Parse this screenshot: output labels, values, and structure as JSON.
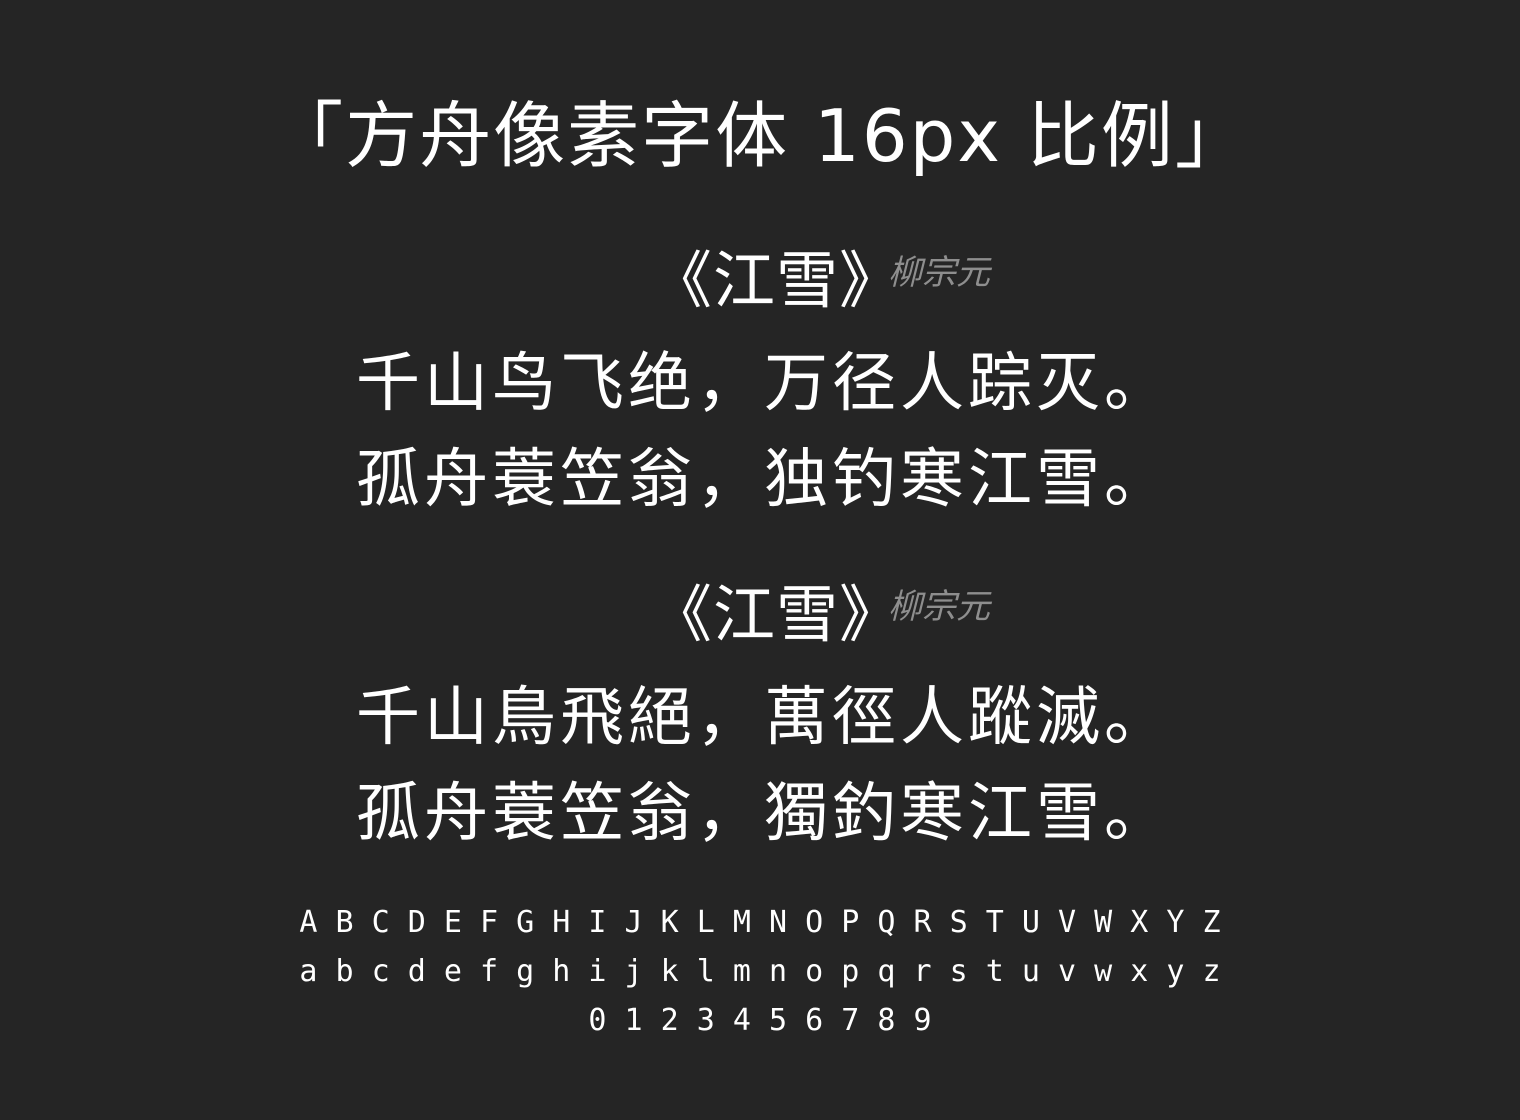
{
  "heading": "「方舟像素字体 16px 比例」",
  "poems": [
    {
      "title": "《江雪》",
      "author": "柳宗元",
      "lines": [
        "千山鸟飞绝，万径人踪灭。",
        "孤舟蓑笠翁，独钓寒江雪。"
      ]
    },
    {
      "title": "《江雪》",
      "author": "柳宗元",
      "lines": [
        "千山鳥飛絕，萬徑人蹤滅。",
        "孤舟蓑笠翁，獨釣寒江雪。"
      ]
    }
  ],
  "glyphs": {
    "uppercase": "A B C D E F G H I J K L M N O P Q R S T U V W X Y Z",
    "lowercase": "a b c d e f g h i j k l m n o p q r s t u v w x y z",
    "digits": "0 1 2 3 4 5 6 7 8 9"
  },
  "colors": {
    "background": "#252525",
    "text": "#ffffff",
    "author": "#8e8e8e"
  }
}
